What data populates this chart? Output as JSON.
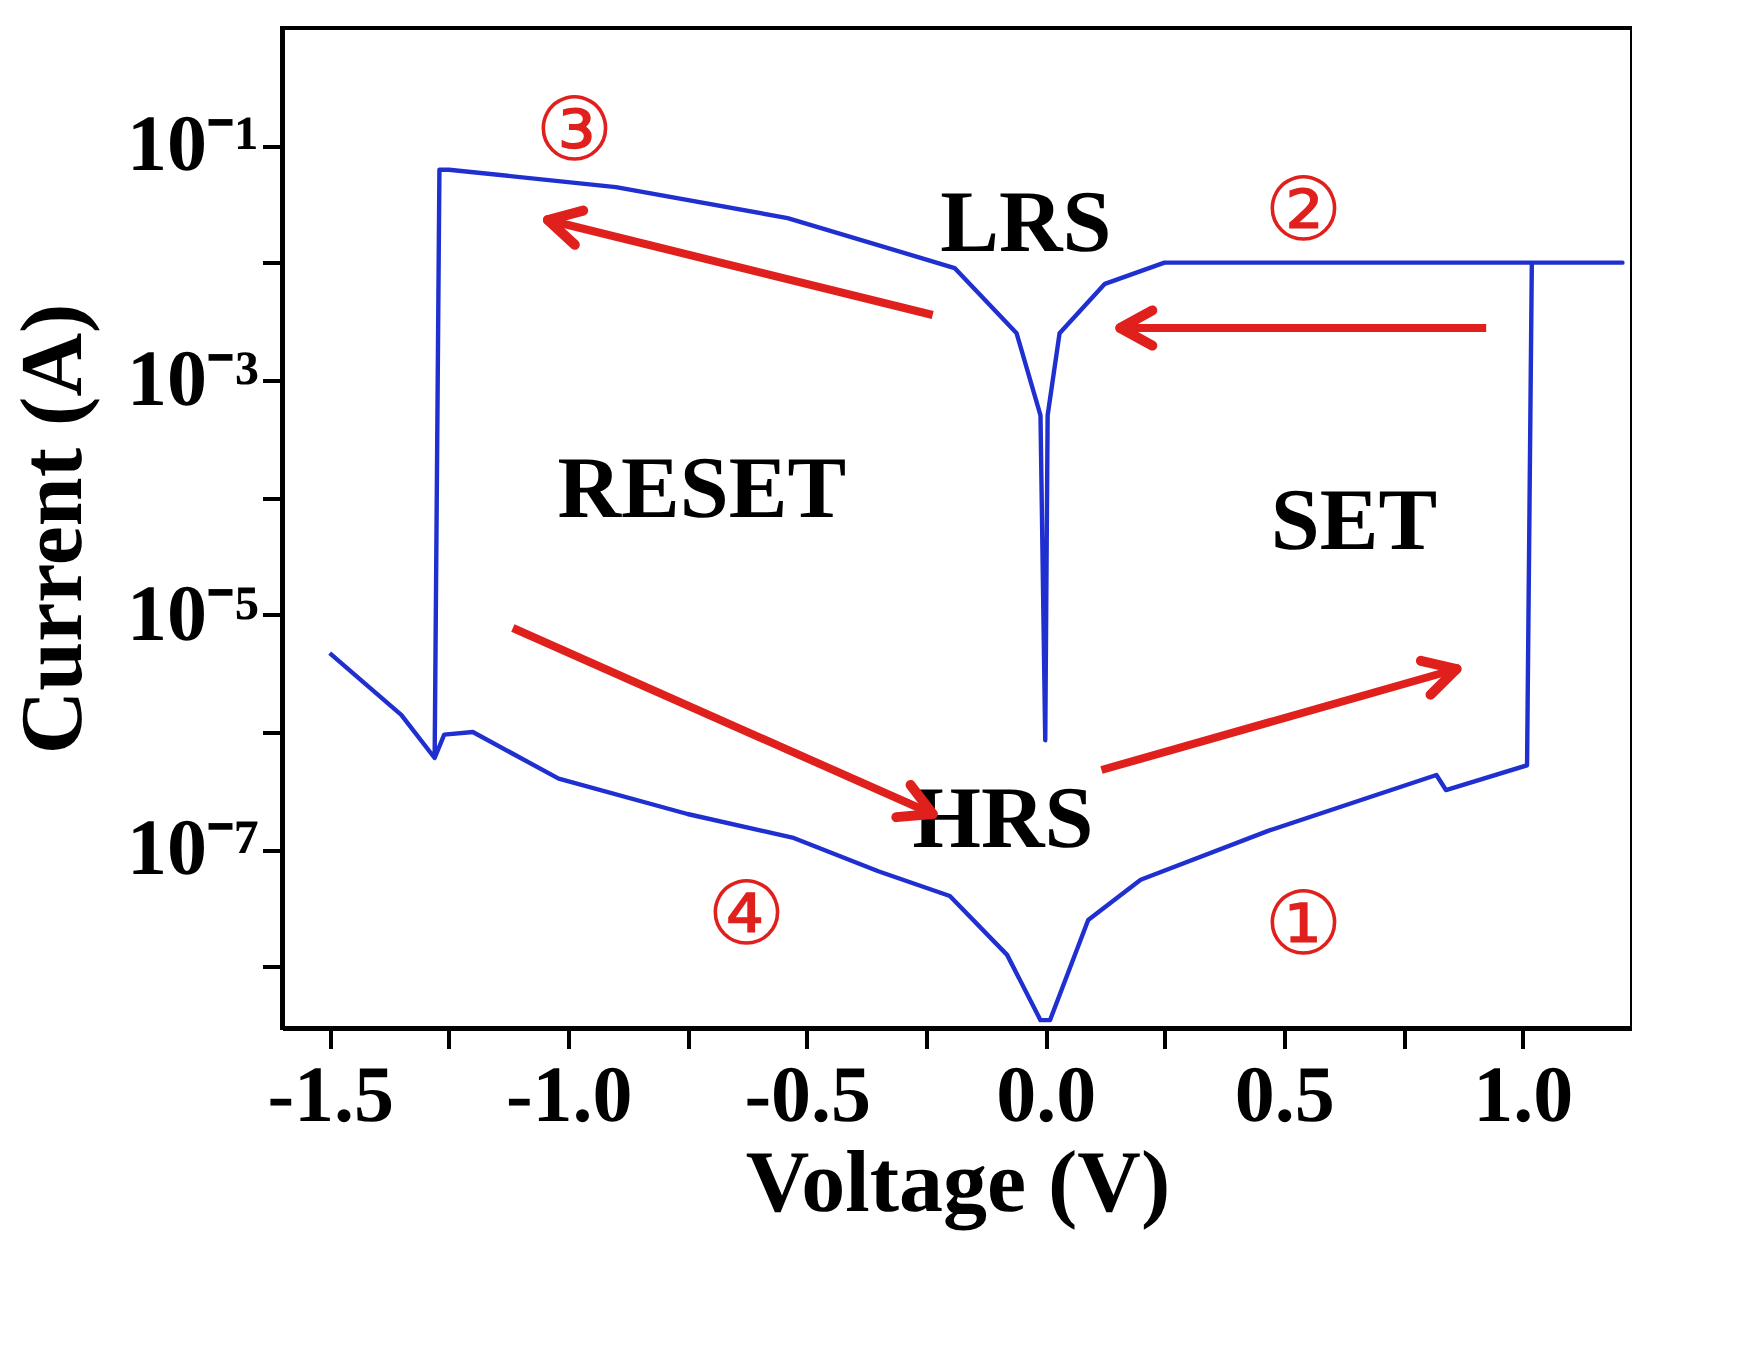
{
  "chart_data": {
    "type": "line",
    "xlabel": "Voltage (V)",
    "ylabel": "Current (A)",
    "log": "y",
    "grid": false,
    "marker": "none",
    "line_style": "solid",
    "xlim": [
      -1.6,
      1.23
    ],
    "ylim": [
      3e-09,
      1
    ],
    "xticks": [
      -1.5,
      {
        "value": -1.25,
        "label": null
      },
      {
        "value": -1.0,
        "label": "-1.0"
      },
      {
        "value": -0.75,
        "label": null
      },
      -0.5,
      {
        "value": -0.25,
        "label": null
      },
      {
        "value": 0.0,
        "label": "0.0"
      },
      {
        "value": 0.25,
        "label": null
      },
      0.5,
      {
        "value": 0.75,
        "label": null
      },
      {
        "value": 1.0,
        "label": "1.0"
      }
    ],
    "yticks": [
      {
        "value": 0.1,
        "label": "10⁻¹"
      },
      {
        "value": 0.01,
        "label": null
      },
      {
        "value": 0.001,
        "label": "10⁻³"
      },
      {
        "value": 0.0001,
        "label": null
      },
      {
        "value": 1e-05,
        "label": "10⁻⁵"
      },
      {
        "value": 1e-06,
        "label": null
      },
      {
        "value": 1e-07,
        "label": "10⁻⁷"
      },
      {
        "value": 1e-08,
        "label": null
      }
    ],
    "series": [
      {
        "color": "#1f2fd0",
        "x": [
          -1.5,
          -1.35,
          -1.28,
          -1.26,
          -1.2,
          -1.02,
          -0.75,
          -0.53,
          -0.35,
          -0.2,
          -0.08,
          -0.01,
          0.01,
          0.09,
          0.2,
          0.47,
          0.82,
          0.84,
          1.01,
          1.02,
          1.21,
          0.25,
          0.125,
          0.03,
          0.005,
          0.0,
          -0.01,
          -0.06,
          -0.19,
          -0.54,
          -0.9,
          -1.25,
          -1.27,
          -1.28
        ],
        "values": [
          4.7e-06,
          1.4e-06,
          6e-07,
          9.5e-07,
          1e-06,
          4e-07,
          2e-07,
          1.26e-07,
          6.5e-08,
          4e-08,
          1.26e-08,
          3.5e-09,
          3.5e-09,
          2.5e-08,
          5.5e-08,
          1.45e-07,
          4.3e-07,
          3.2e-07,
          5.2e-07,
          0.01,
          0.01,
          0.01,
          0.0066,
          0.0025,
          0.0005,
          8.5e-07,
          0.0005,
          0.0025,
          0.009,
          0.024,
          0.044,
          0.062,
          0.062,
          6e-07
        ]
      }
    ],
    "annotations": [
      "③",
      "②",
      "LRS",
      "RESET",
      "SET",
      "HRS",
      "④",
      "①"
    ]
  }
}
